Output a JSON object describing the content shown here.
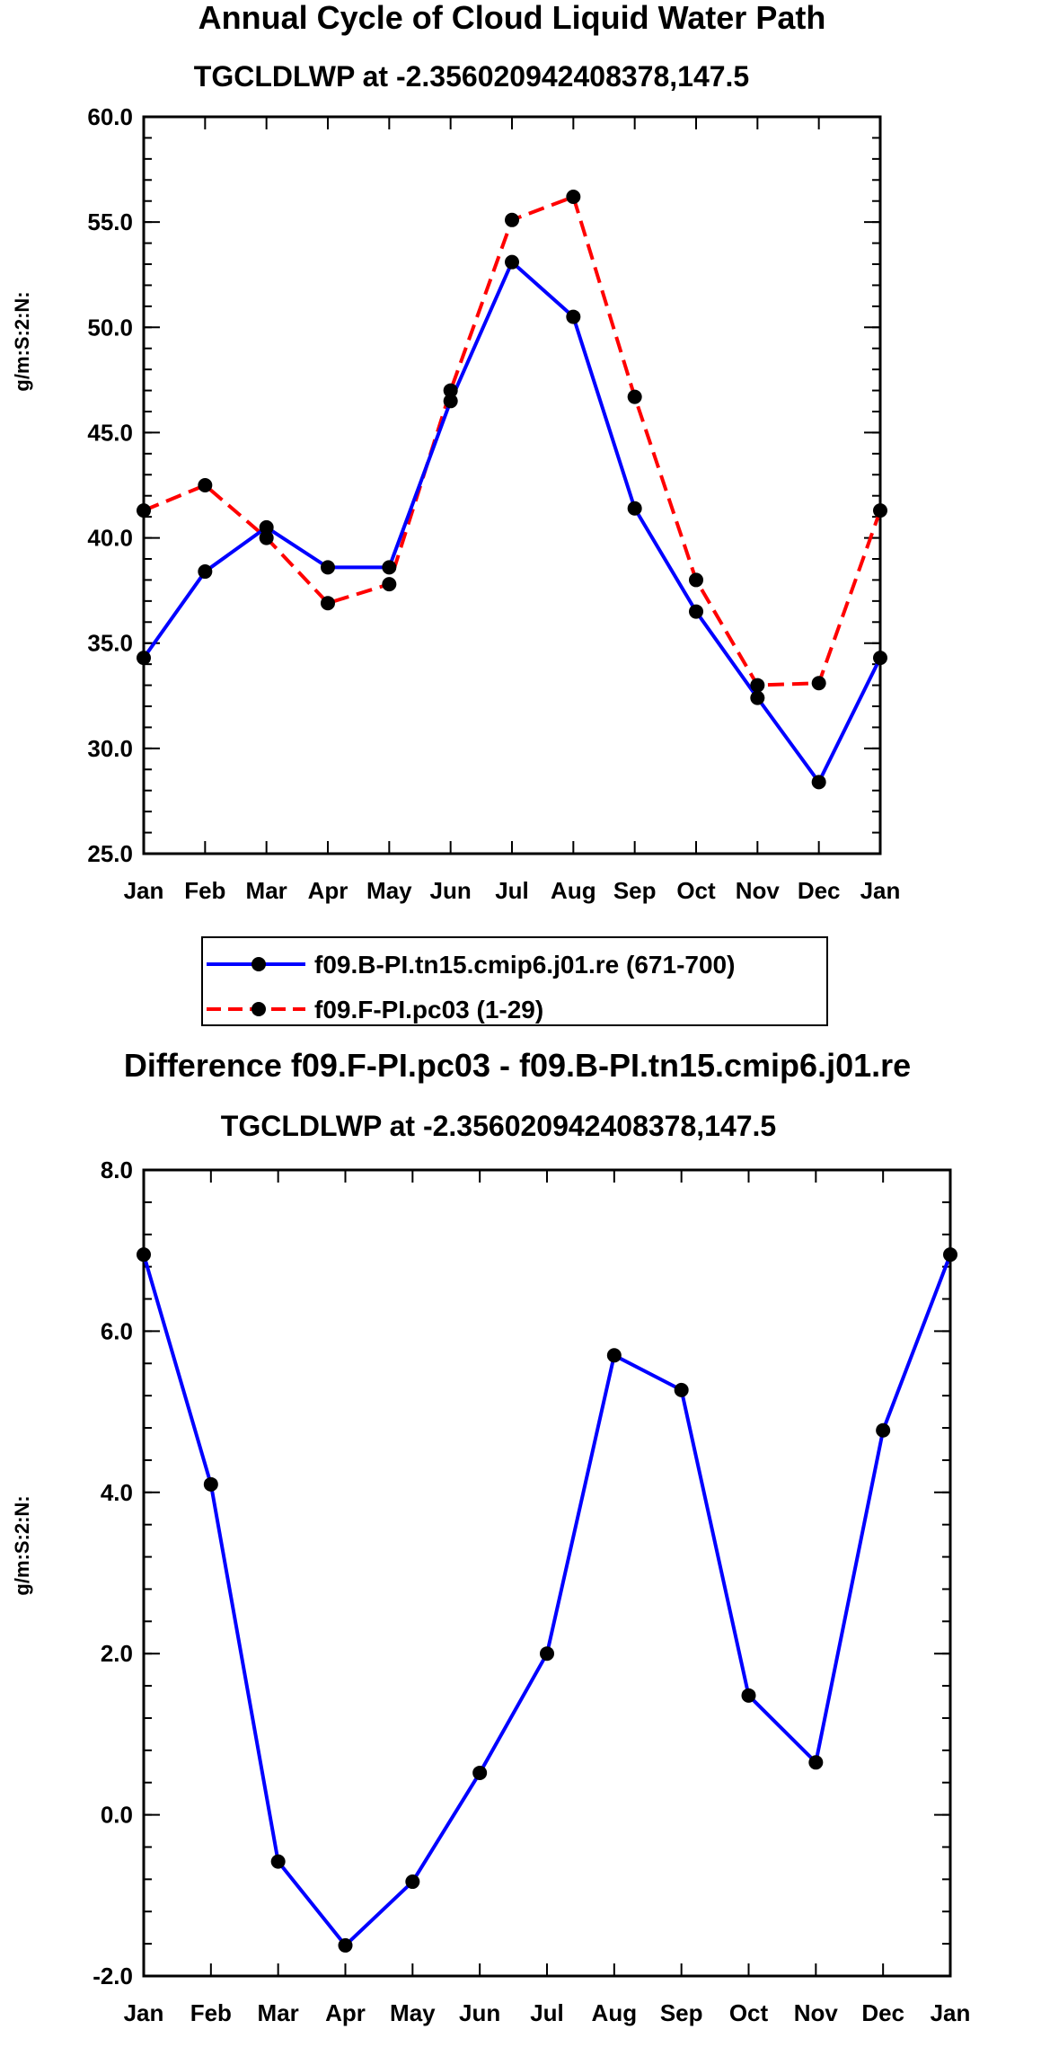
{
  "chart_data": [
    {
      "type": "line",
      "title": "Annual Cycle of Cloud Liquid Water Path",
      "subtitle": "TGCLDLWP at -2.356020942408378,147.5",
      "ylabel": "g/m:S:2:N:",
      "xlabel": "",
      "ylim": [
        25.0,
        60.0
      ],
      "yticks": [
        "25.0",
        "30.0",
        "35.0",
        "40.0",
        "45.0",
        "50.0",
        "55.0",
        "60.0"
      ],
      "categories": [
        "Jan",
        "Feb",
        "Mar",
        "Apr",
        "May",
        "Jun",
        "Jul",
        "Aug",
        "Sep",
        "Oct",
        "Nov",
        "Dec",
        "Jan"
      ],
      "series": [
        {
          "name": "f09.B-PI.tn15.cmip6.j01.re (671-700)",
          "color": "#0000ff",
          "dash": "solid",
          "values": [
            34.3,
            38.4,
            40.5,
            38.6,
            38.6,
            46.5,
            53.1,
            50.5,
            41.4,
            36.5,
            32.4,
            28.4,
            34.3
          ]
        },
        {
          "name": "f09.F-PI.pc03 (1-29)",
          "color": "#ff0000",
          "dash": "dashed",
          "values": [
            41.3,
            42.5,
            40.0,
            36.9,
            37.8,
            47.0,
            55.1,
            56.2,
            46.7,
            38.0,
            33.0,
            33.1,
            41.3
          ]
        }
      ],
      "grid": false,
      "legend": "below"
    },
    {
      "type": "line",
      "title": "Difference f09.F-PI.pc03 - f09.B-PI.tn15.cmip6.j01.re",
      "subtitle": "TGCLDLWP at -2.356020942408378,147.5",
      "ylabel": "g/m:S:2:N:",
      "xlabel": "",
      "ylim": [
        -2.0,
        8.0
      ],
      "yticks": [
        "-2.0",
        "0.0",
        "2.0",
        "4.0",
        "6.0",
        "8.0"
      ],
      "categories": [
        "Jan",
        "Feb",
        "Mar",
        "Apr",
        "May",
        "Jun",
        "Jul",
        "Aug",
        "Sep",
        "Oct",
        "Nov",
        "Dec",
        "Jan"
      ],
      "series": [
        {
          "name": "Difference",
          "color": "#0000ff",
          "dash": "solid",
          "values": [
            6.95,
            4.1,
            -0.58,
            -1.62,
            -0.83,
            0.52,
            2.0,
            5.7,
            5.27,
            1.48,
            0.65,
            4.77,
            6.95
          ]
        }
      ],
      "grid": false,
      "legend": "none"
    }
  ]
}
